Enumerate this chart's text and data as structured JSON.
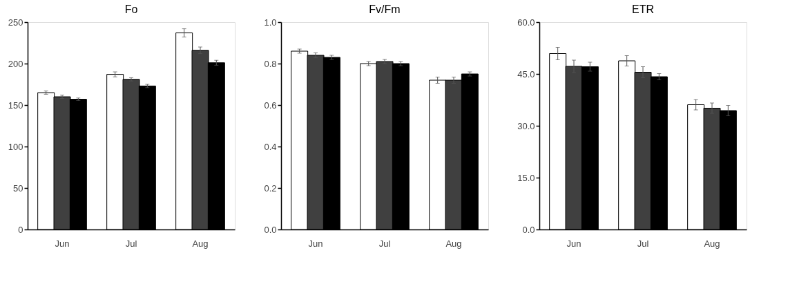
{
  "chart_data": [
    {
      "type": "bar",
      "title": "Fo",
      "categories": [
        "Jun",
        "Jul",
        "Aug"
      ],
      "ylim": [
        0,
        250
      ],
      "yticks": [
        0,
        50,
        100,
        150,
        200,
        250
      ],
      "series": [
        {
          "color": "#ffffff",
          "values": [
            165,
            187,
            237
          ],
          "errors": [
            2,
            3,
            5
          ]
        },
        {
          "color": "#404040",
          "values": [
            160,
            181,
            216
          ],
          "errors": [
            2,
            2,
            4
          ]
        },
        {
          "color": "#000000",
          "values": [
            157,
            173,
            201
          ],
          "errors": [
            1.5,
            2,
            3
          ]
        }
      ]
    },
    {
      "type": "bar",
      "title": "Fv/Fm",
      "categories": [
        "Jun",
        "Jul",
        "Aug"
      ],
      "ylim": [
        0,
        1
      ],
      "yticks": [
        {
          "value": 0,
          "label": "0.0"
        },
        0.2,
        0.4,
        0.6,
        0.8,
        {
          "value": 1,
          "label": "1.0"
        }
      ],
      "series": [
        {
          "color": "#ffffff",
          "values": [
            0.86,
            0.8,
            0.72
          ],
          "errors": [
            0.01,
            0.01,
            0.015
          ]
        },
        {
          "color": "#404040",
          "values": [
            0.84,
            0.81,
            0.72
          ],
          "errors": [
            0.012,
            0.01,
            0.015
          ]
        },
        {
          "color": "#000000",
          "values": [
            0.83,
            0.8,
            0.75
          ],
          "errors": [
            0.01,
            0.01,
            0.01
          ]
        }
      ]
    },
    {
      "type": "bar",
      "title": "ETR",
      "categories": [
        "Jun",
        "Jul",
        "Aug"
      ],
      "ylim": [
        0,
        60
      ],
      "yticks": [
        {
          "value": 0,
          "label": "0.0"
        },
        {
          "value": 15,
          "label": "15.0"
        },
        {
          "value": 30,
          "label": "30.0"
        },
        {
          "value": 45,
          "label": "45.0"
        },
        {
          "value": 60,
          "label": "60.0"
        }
      ],
      "series": [
        {
          "color": "#ffffff",
          "values": [
            50.9,
            48.8,
            36.1
          ],
          "errors": [
            1.8,
            1.5,
            1.5
          ]
        },
        {
          "color": "#404040",
          "values": [
            47.2,
            45.5,
            35.1
          ],
          "errors": [
            1.8,
            1.6,
            1.5
          ]
        },
        {
          "color": "#000000",
          "values": [
            47.1,
            44.2,
            34.4
          ],
          "errors": [
            1.3,
            0.9,
            1.5
          ]
        }
      ]
    }
  ]
}
